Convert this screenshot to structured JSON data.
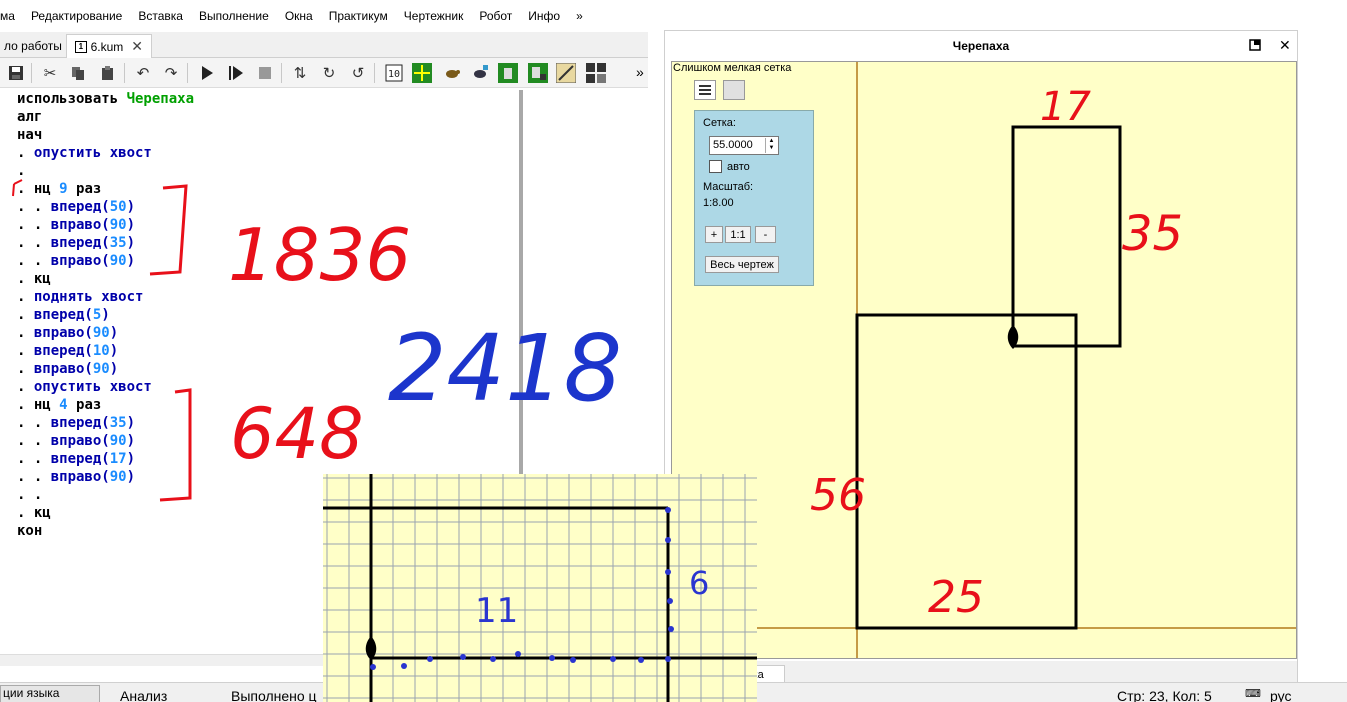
{
  "menu": {
    "items": [
      "ма",
      "Редактирование",
      "Вставка",
      "Выполнение",
      "Окна",
      "Практикум",
      "Чертежник",
      "Робот",
      "Инфо",
      "»"
    ]
  },
  "editor": {
    "tabs": [
      {
        "label": "ло работы"
      },
      {
        "label": "6.kum",
        "icon_text": "1"
      }
    ],
    "toolbar_icons": [
      "save-icon",
      "cut-icon",
      "copy-icon",
      "paste-icon",
      "undo-icon",
      "redo-icon",
      "run-icon",
      "step-run-icon",
      "stop-icon",
      "step-into-icon",
      "step-over-icon",
      "step-out-icon",
      "counter-icon",
      "grid-tool-icon",
      "turtle-tool-icon",
      "turtle-alt-icon",
      "robot-icon",
      "robot-alt-icon",
      "draw-icon",
      "table-icon"
    ],
    "more_label": "»",
    "code_lines": [
      [
        {
          "t": "использовать ",
          "c": "black"
        },
        {
          "t": "Черепаха",
          "c": "green"
        }
      ],
      [
        {
          "t": "алг",
          "c": "black"
        }
      ],
      [
        {
          "t": "нач",
          "c": "black"
        }
      ],
      [
        {
          "t": ". ",
          "c": "black"
        },
        {
          "t": "опустить хвост",
          "c": "blue"
        }
      ],
      [
        {
          "t": ".",
          "c": "black"
        }
      ],
      [
        {
          "t": ". нц ",
          "c": "black"
        },
        {
          "t": "9",
          "c": "num"
        },
        {
          "t": " раз",
          "c": "black"
        }
      ],
      [
        {
          "t": ". . ",
          "c": "black"
        },
        {
          "t": "вперед(",
          "c": "blue"
        },
        {
          "t": "50",
          "c": "num"
        },
        {
          "t": ")",
          "c": "blue"
        }
      ],
      [
        {
          "t": ". . ",
          "c": "black"
        },
        {
          "t": "вправо(",
          "c": "blue"
        },
        {
          "t": "90",
          "c": "num"
        },
        {
          "t": ")",
          "c": "blue"
        }
      ],
      [
        {
          "t": ". . ",
          "c": "black"
        },
        {
          "t": "вперед(",
          "c": "blue"
        },
        {
          "t": "35",
          "c": "num"
        },
        {
          "t": ")",
          "c": "blue"
        }
      ],
      [
        {
          "t": ". . ",
          "c": "black"
        },
        {
          "t": "вправо(",
          "c": "blue"
        },
        {
          "t": "90",
          "c": "num"
        },
        {
          "t": ")",
          "c": "blue"
        }
      ],
      [
        {
          "t": ". кц",
          "c": "black"
        }
      ],
      [
        {
          "t": ". ",
          "c": "black"
        },
        {
          "t": "поднять хвост",
          "c": "blue"
        }
      ],
      [
        {
          "t": ". ",
          "c": "black"
        },
        {
          "t": "вперед(",
          "c": "blue"
        },
        {
          "t": "5",
          "c": "num"
        },
        {
          "t": ")",
          "c": "blue"
        }
      ],
      [
        {
          "t": ". ",
          "c": "black"
        },
        {
          "t": "вправо(",
          "c": "blue"
        },
        {
          "t": "90",
          "c": "num"
        },
        {
          "t": ")",
          "c": "blue"
        }
      ],
      [
        {
          "t": ". ",
          "c": "black"
        },
        {
          "t": "вперед(",
          "c": "blue"
        },
        {
          "t": "10",
          "c": "num"
        },
        {
          "t": ")",
          "c": "blue"
        }
      ],
      [
        {
          "t": ". ",
          "c": "black"
        },
        {
          "t": "вправо(",
          "c": "blue"
        },
        {
          "t": "90",
          "c": "num"
        },
        {
          "t": ")",
          "c": "blue"
        }
      ],
      [
        {
          "t": ". ",
          "c": "black"
        },
        {
          "t": "опустить хвост",
          "c": "blue"
        }
      ],
      [
        {
          "t": ". нц ",
          "c": "black"
        },
        {
          "t": "4",
          "c": "num"
        },
        {
          "t": " раз",
          "c": "black"
        }
      ],
      [
        {
          "t": ". . ",
          "c": "black"
        },
        {
          "t": "вперед(",
          "c": "blue"
        },
        {
          "t": "35",
          "c": "num"
        },
        {
          "t": ")",
          "c": "blue"
        }
      ],
      [
        {
          "t": ". . ",
          "c": "black"
        },
        {
          "t": "вправо(",
          "c": "blue"
        },
        {
          "t": "90",
          "c": "num"
        },
        {
          "t": ")",
          "c": "blue"
        }
      ],
      [
        {
          "t": ". . ",
          "c": "black"
        },
        {
          "t": "вперед(",
          "c": "blue"
        },
        {
          "t": "17",
          "c": "num"
        },
        {
          "t": ")",
          "c": "blue"
        }
      ],
      [
        {
          "t": ". . ",
          "c": "black"
        },
        {
          "t": "вправо(",
          "c": "blue"
        },
        {
          "t": "90",
          "c": "num"
        },
        {
          "t": ")",
          "c": "blue"
        }
      ],
      [
        {
          "t": ". .",
          "c": "black"
        }
      ],
      [
        {
          "t": ". кц",
          "c": "black"
        }
      ],
      [
        {
          "t": "кон",
          "c": "black"
        }
      ]
    ]
  },
  "status": {
    "tab_label": "ции языка",
    "analysis": "Анализ",
    "executed": "Выполнено ц",
    "position": "Стр: 23, Кол: 5",
    "lang": "рус"
  },
  "turtle": {
    "title": "Черепаха",
    "grid_warning": "Слишком мелкая сетка",
    "grid_label": "Сетка:",
    "grid_value": "55.0000",
    "auto_label": "авто",
    "scale_label": "Масштаб:",
    "scale_value": "1:8.00",
    "zoom_in": "+",
    "zoom_reset": "1:1",
    "zoom_out": "-",
    "fit_button": "Весь чертеж",
    "status_tab": "пaxa"
  },
  "annotations": {
    "editor_red": [
      "1836",
      "648"
    ],
    "editor_blue": "2418",
    "canvas_red": [
      "17",
      "35",
      "56",
      "25"
    ],
    "overlay_blue": [
      "11",
      "6"
    ]
  },
  "colors": {
    "canvas_bg": "#ffffc8",
    "grid_panel_bg": "#add8e6",
    "keyword_blue": "#0000aa",
    "keyword_green": "#00a000",
    "number_blue": "#1a8cff",
    "annotation_red": "#e8101a",
    "annotation_blue": "#1c35cc"
  }
}
